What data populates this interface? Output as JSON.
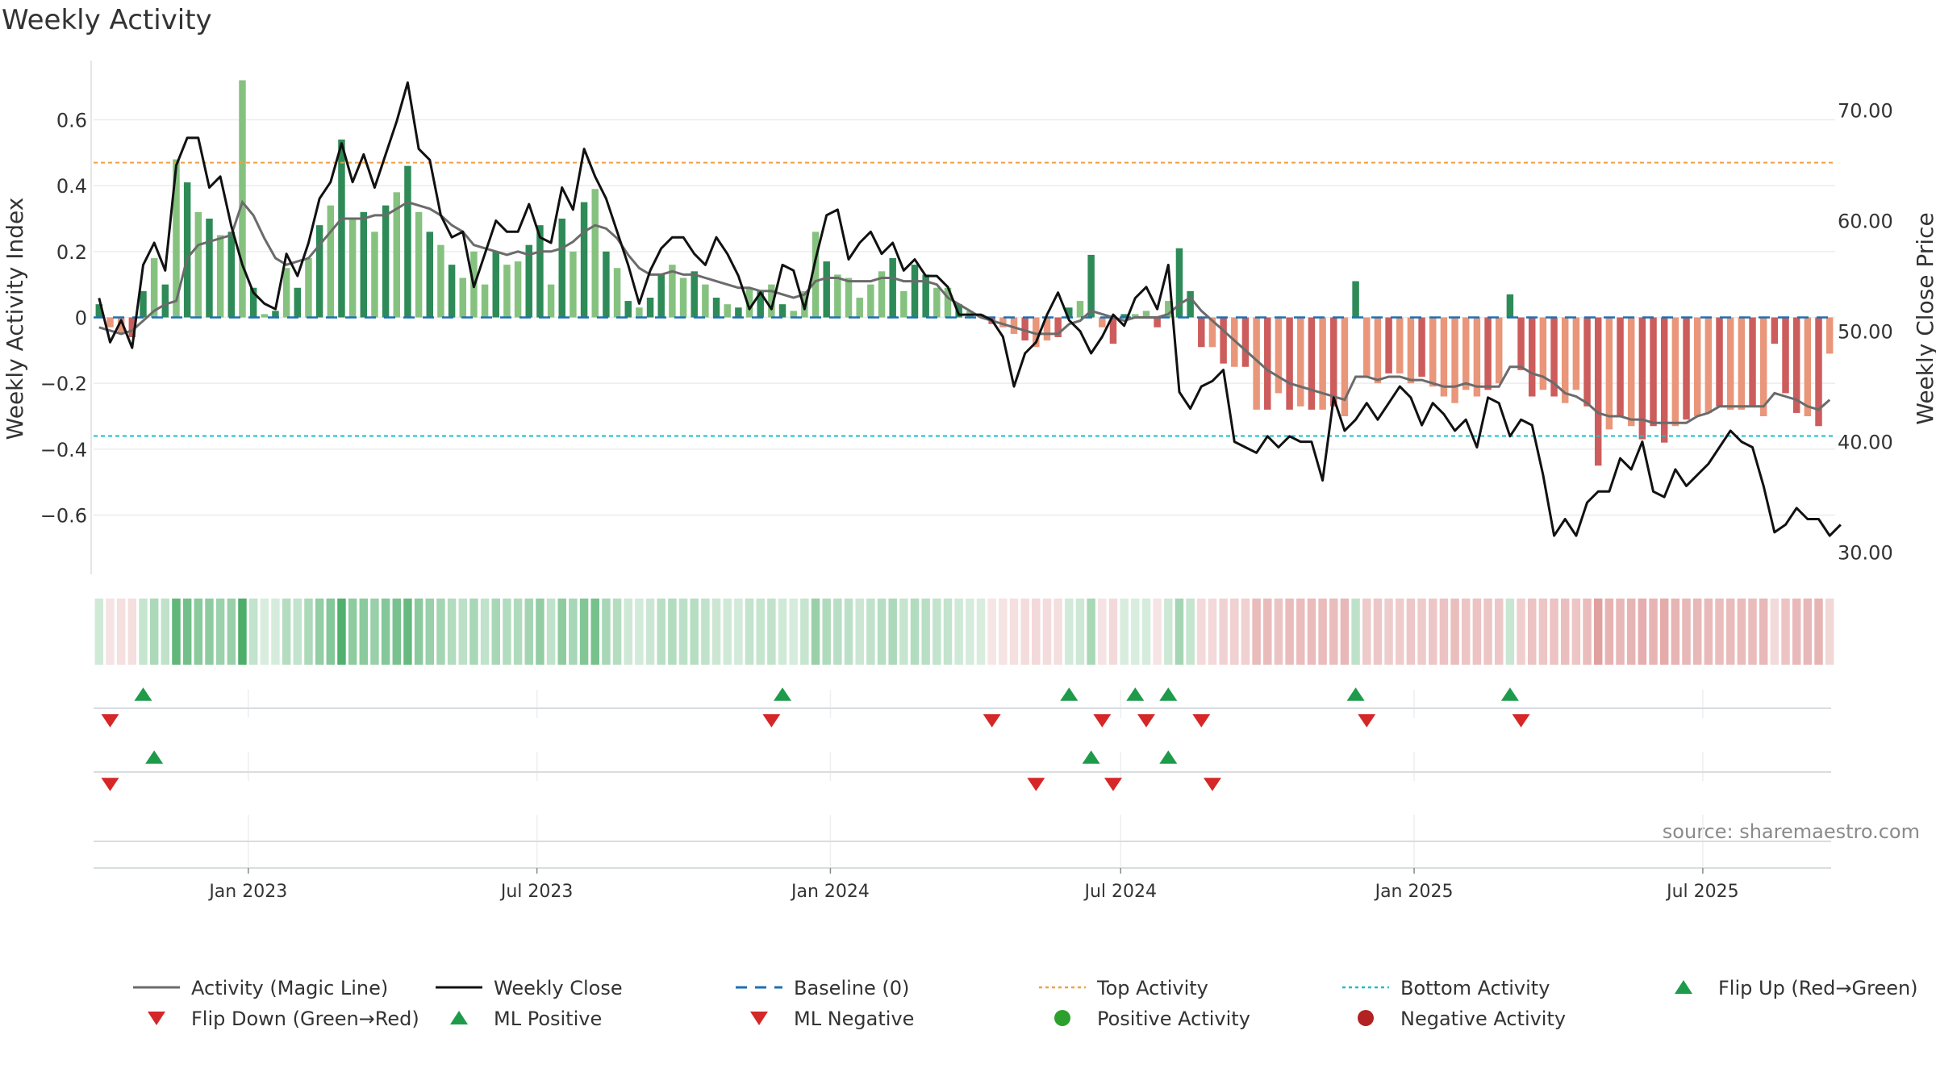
{
  "chart_data": {
    "type": "bar",
    "title": "Weekly Activity",
    "ylabel": "Weekly Activity Index",
    "y2label": "Weekly Close Price",
    "ylim": [
      -0.78,
      0.78
    ],
    "y2lim": [
      28.0,
      74.5
    ],
    "yticks": [
      0.6,
      0.4,
      0.2,
      0,
      -0.2,
      -0.4,
      -0.6
    ],
    "ytick_labels": [
      "0.6",
      "0.4",
      "0.2",
      "0",
      "−0.2",
      "−0.4",
      "−0.6"
    ],
    "y2ticks": [
      70,
      60,
      50,
      40,
      30
    ],
    "y2tick_labels": [
      "70.00",
      "60.00",
      "50.00",
      "40.00",
      "30.00"
    ],
    "x_start": "2022-09-26",
    "x_end": "2025-09-22",
    "xticks": [
      {
        "date": "2023-01-01",
        "label": "Jan 2023"
      },
      {
        "date": "2023-07-01",
        "label": "Jul 2023"
      },
      {
        "date": "2024-01-01",
        "label": "Jan 2024"
      },
      {
        "date": "2024-07-01",
        "label": "Jul 2024"
      },
      {
        "date": "2025-01-01",
        "label": "Jan 2025"
      },
      {
        "date": "2025-07-01",
        "label": "Jul 2025"
      }
    ],
    "top_activity": 0.47,
    "bottom_activity": -0.36,
    "source": "source: sharemaestro.com",
    "bar_colors": {
      "pos_strong": "#2e8b57",
      "pos_light": "#86c27f",
      "neg_strong": "#cd5c5c",
      "neg_light": "#e9967a"
    },
    "line_colors": {
      "magic": "#6b6b6b",
      "close": "#111111",
      "baseline": "#1f6fb2",
      "top": "#f0a040",
      "bottom": "#17becf",
      "up": "#1e9b4a",
      "down": "#d62728",
      "positive": "#2ca02c",
      "negative": "#b22222"
    },
    "series": [
      {
        "name": "Weekly Activity Index",
        "values": [
          0.04,
          -0.03,
          -0.05,
          -0.06,
          0.08,
          0.18,
          0.1,
          0.48,
          0.41,
          0.32,
          0.3,
          0.25,
          0.26,
          0.72,
          0.09,
          0.01,
          0.02,
          0.15,
          0.09,
          0.18,
          0.28,
          0.34,
          0.54,
          0.3,
          0.32,
          0.26,
          0.34,
          0.38,
          0.46,
          0.32,
          0.26,
          0.22,
          0.16,
          0.12,
          0.2,
          0.1,
          0.2,
          0.16,
          0.17,
          0.22,
          0.28,
          0.1,
          0.3,
          0.2,
          0.35,
          0.39,
          0.2,
          0.15,
          0.05,
          0.03,
          0.06,
          0.13,
          0.16,
          0.12,
          0.14,
          0.1,
          0.06,
          0.04,
          0.03,
          0.09,
          0.08,
          0.1,
          0.04,
          0.02,
          0.08,
          0.26,
          0.17,
          0.13,
          0.12,
          0.06,
          0.1,
          0.14,
          0.18,
          0.08,
          0.16,
          0.13,
          0.09,
          0.09,
          0.04,
          0.02,
          0.01,
          -0.02,
          -0.03,
          -0.05,
          -0.07,
          -0.09,
          -0.07,
          -0.06,
          0.03,
          0.05,
          0.19,
          -0.03,
          -0.08,
          0.01,
          0.01,
          0.02,
          -0.03,
          0.05,
          0.21,
          0.08,
          -0.09,
          -0.09,
          -0.14,
          -0.15,
          -0.15,
          -0.28,
          -0.28,
          -0.23,
          -0.28,
          -0.27,
          -0.28,
          -0.28,
          -0.27,
          -0.3,
          0.11,
          -0.18,
          -0.2,
          -0.17,
          -0.17,
          -0.2,
          -0.18,
          -0.21,
          -0.24,
          -0.26,
          -0.22,
          -0.24,
          -0.22,
          -0.2,
          0.07,
          -0.16,
          -0.24,
          -0.22,
          -0.24,
          -0.26,
          -0.22,
          -0.27,
          -0.45,
          -0.34,
          -0.3,
          -0.33,
          -0.37,
          -0.33,
          -0.38,
          -0.33,
          -0.31,
          -0.3,
          -0.29,
          -0.27,
          -0.28,
          -0.28,
          -0.27,
          -0.3,
          -0.08,
          -0.23,
          -0.29,
          -0.3,
          -0.33,
          -0.11
        ]
      },
      {
        "name": "Activity (Magic Line)",
        "values": [
          -0.03,
          -0.04,
          -0.05,
          -0.04,
          -0.01,
          0.02,
          0.04,
          0.05,
          0.18,
          0.22,
          0.23,
          0.24,
          0.25,
          0.35,
          0.31,
          0.24,
          0.18,
          0.16,
          0.17,
          0.18,
          0.22,
          0.26,
          0.3,
          0.3,
          0.3,
          0.31,
          0.31,
          0.33,
          0.35,
          0.34,
          0.33,
          0.31,
          0.28,
          0.26,
          0.22,
          0.21,
          0.2,
          0.19,
          0.2,
          0.19,
          0.2,
          0.2,
          0.21,
          0.23,
          0.26,
          0.28,
          0.27,
          0.24,
          0.19,
          0.15,
          0.13,
          0.13,
          0.14,
          0.13,
          0.13,
          0.12,
          0.11,
          0.1,
          0.09,
          0.09,
          0.08,
          0.08,
          0.07,
          0.06,
          0.07,
          0.11,
          0.12,
          0.12,
          0.11,
          0.11,
          0.11,
          0.12,
          0.12,
          0.11,
          0.11,
          0.11,
          0.1,
          0.06,
          0.04,
          0.02,
          0.0,
          -0.01,
          -0.02,
          -0.03,
          -0.04,
          -0.05,
          -0.05,
          -0.05,
          -0.02,
          -0.01,
          0.02,
          0.01,
          0.0,
          -0.01,
          0.0,
          0.0,
          0.0,
          0.01,
          0.04,
          0.06,
          0.02,
          -0.01,
          -0.04,
          -0.07,
          -0.1,
          -0.13,
          -0.16,
          -0.18,
          -0.2,
          -0.21,
          -0.22,
          -0.23,
          -0.24,
          -0.25,
          -0.18,
          -0.18,
          -0.19,
          -0.18,
          -0.18,
          -0.19,
          -0.19,
          -0.2,
          -0.21,
          -0.21,
          -0.2,
          -0.21,
          -0.21,
          -0.21,
          -0.15,
          -0.15,
          -0.17,
          -0.18,
          -0.2,
          -0.23,
          -0.24,
          -0.26,
          -0.29,
          -0.3,
          -0.3,
          -0.31,
          -0.31,
          -0.32,
          -0.32,
          -0.32,
          -0.32,
          -0.3,
          -0.29,
          -0.27,
          -0.27,
          -0.27,
          -0.27,
          -0.27,
          -0.23,
          -0.24,
          -0.25,
          -0.27,
          -0.28,
          -0.25
        ]
      },
      {
        "name": "Weekly Close",
        "values": [
          53.0,
          49.0,
          51.0,
          48.5,
          56.0,
          58.0,
          55.5,
          65.0,
          67.5,
          67.5,
          63.0,
          64.0,
          59.5,
          56.0,
          53.5,
          52.5,
          52.0,
          57.0,
          55.0,
          58.0,
          62.0,
          63.5,
          67.0,
          63.5,
          66.0,
          63.0,
          66.0,
          69.0,
          72.5,
          66.5,
          65.5,
          60.5,
          58.5,
          59.0,
          54.0,
          57.0,
          60.0,
          59.0,
          59.0,
          61.5,
          58.5,
          58.0,
          63.0,
          61.0,
          66.5,
          64.0,
          62.0,
          59.0,
          56.0,
          52.5,
          55.5,
          57.5,
          58.5,
          58.5,
          57.0,
          56.0,
          58.5,
          57.0,
          55.0,
          52.0,
          53.5,
          52.0,
          56.0,
          55.5,
          52.0,
          56.5,
          60.5,
          61.0,
          56.5,
          58.0,
          59.0,
          57.0,
          58.0,
          55.5,
          56.5,
          55.0,
          55.0,
          54.0,
          51.5,
          51.5,
          51.5,
          51.0,
          49.5,
          45.0,
          48.0,
          49.0,
          51.5,
          53.5,
          51.0,
          50.0,
          48.0,
          49.5,
          51.5,
          50.5,
          53.0,
          54.0,
          52.0,
          56.0,
          44.5,
          43.0,
          45.0,
          45.5,
          46.5,
          40.0,
          39.5,
          39.0,
          40.5,
          39.5,
          40.5,
          40.0,
          40.0,
          36.5,
          44.0,
          41.0,
          42.0,
          43.5,
          42.0,
          43.5,
          45.0,
          44.0,
          41.5,
          43.5,
          42.5,
          41.0,
          42.0,
          39.5,
          44.0,
          43.5,
          40.5,
          42.0,
          41.5,
          37.0,
          31.5,
          33.0,
          31.5,
          34.5,
          35.5,
          35.5,
          38.5,
          37.5,
          40.0,
          35.5,
          35.0,
          37.5,
          36.0,
          37.0,
          38.0,
          39.5,
          41.0,
          40.0,
          39.5,
          36.0,
          31.8,
          32.5,
          34.0,
          33.0,
          33.0,
          31.5,
          32.5
        ]
      },
      {
        "name": "Flip Up (Red→Green)",
        "week_index": [
          4,
          62,
          88,
          94,
          97,
          114,
          128
        ]
      },
      {
        "name": "Flip Down (Green→Red)",
        "week_index": [
          1,
          61,
          81,
          91,
          95,
          100,
          115,
          129
        ]
      },
      {
        "name": "ML Positive",
        "week_index": [
          5,
          90,
          97
        ]
      },
      {
        "name": "ML Negative",
        "week_index": [
          1,
          85,
          92,
          101
        ]
      }
    ],
    "legend": [
      {
        "label": "Activity (Magic Line)",
        "kind": "line",
        "color": "#6b6b6b"
      },
      {
        "label": "Weekly Close",
        "kind": "line",
        "color": "#111111"
      },
      {
        "label": "Baseline (0)",
        "kind": "dashed",
        "color": "#1f6fb2"
      },
      {
        "label": "Top Activity",
        "kind": "dotted",
        "color": "#f0a040"
      },
      {
        "label": "Bottom Activity",
        "kind": "dotted",
        "color": "#17becf"
      },
      {
        "label": "Flip Up (Red→Green)",
        "kind": "up",
        "color": "#1e9b4a"
      },
      {
        "label": "Flip Down (Green→Red)",
        "kind": "down",
        "color": "#d62728"
      },
      {
        "label": "ML Positive",
        "kind": "up",
        "color": "#1e9b4a"
      },
      {
        "label": "ML Negative",
        "kind": "down",
        "color": "#d62728"
      },
      {
        "label": "Positive Activity",
        "kind": "dot",
        "color": "#2ca02c"
      },
      {
        "label": "Negative Activity",
        "kind": "dot",
        "color": "#b22222"
      }
    ]
  }
}
